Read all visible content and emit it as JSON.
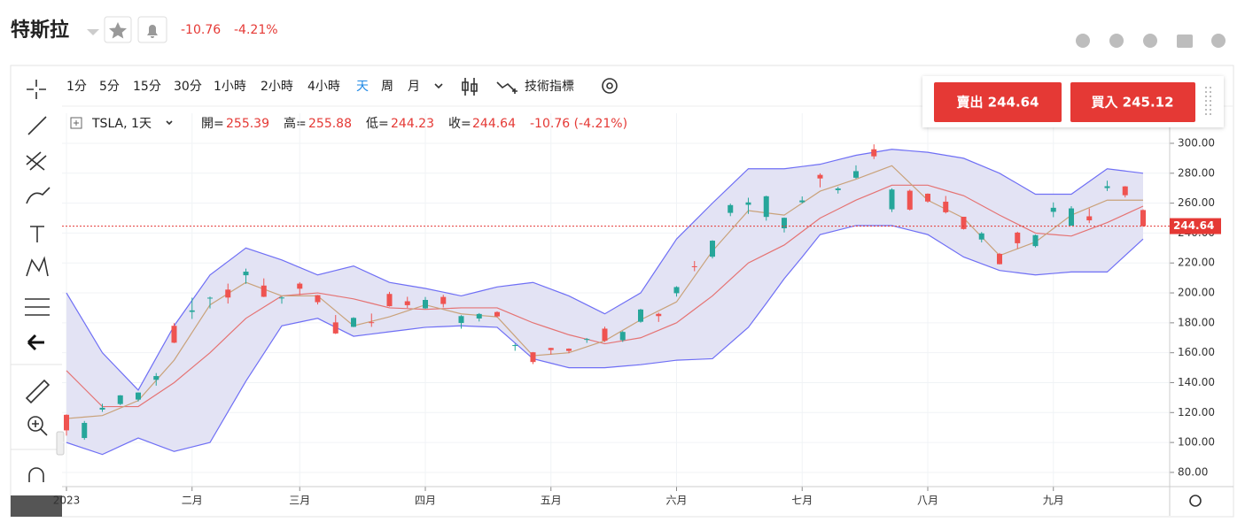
{
  "header": {
    "name": "特斯拉",
    "change": -10.76,
    "change_pct": "-4.21%"
  },
  "toolbar": {
    "intervals": [
      "1分",
      "5分",
      "15分",
      "30分",
      "1小時",
      "2小時",
      "4小時",
      "天",
      "周",
      "月"
    ],
    "indicators": "技術指標"
  },
  "legend": {
    "symbol": "TSLA, 1天",
    "open_label": "開=",
    "high_label": "高=",
    "low_label": "低=",
    "close_label": "收=",
    "change": "-10.76 (-4.21%)"
  },
  "trade": {
    "sell": "賣出 244.64",
    "buy": "買入 245.12"
  },
  "chart_data": {
    "type": "candlestick",
    "categories": [
      "2023",
      null,
      null,
      null,
      null,
      null,
      null,
      "二月",
      null,
      null,
      null,
      null,
      null,
      "三月",
      null,
      null,
      null,
      null,
      null,
      null,
      "四月",
      null,
      null,
      null,
      null,
      null,
      null,
      "五月",
      null,
      null,
      null,
      null,
      null,
      null,
      "六月",
      null,
      null,
      null,
      null,
      null,
      null,
      "七月",
      null,
      null,
      null,
      null,
      null,
      null,
      "八月",
      null,
      null,
      null,
      null,
      null,
      null,
      "九月",
      null,
      null,
      null,
      null,
      null
    ],
    "open": [
      118.5,
      103,
      122,
      125.7,
      128.7,
      141.9,
      178,
      187.3,
      196.4,
      202.2,
      211.8,
      204.9,
      196.3,
      206.2,
      198.5,
      180.3,
      177.3,
      180.4,
      199.3,
      194.4,
      189.7,
      197.3,
      179.9,
      182.9,
      187.2,
      164.8,
      160.3,
      163.2,
      162.7,
      168.9,
      176.1,
      168.4,
      180.7,
      186,
      199.8,
      217.8,
      224.2,
      253.5,
      258.9,
      250.8,
      243.2,
      260.6,
      278.9,
      268.7,
      277,
      296,
      255.9,
      268.3,
      266.3,
      260.97,
      250.9,
      235.7,
      226.1,
      240.3,
      231.3,
      254.2,
      245,
      251.2,
      270.1,
      271.2,
      255.39
    ],
    "high": [
      118.8,
      114.4,
      125.9,
      131.7,
      133.5,
      146.4,
      179.8,
      196.8,
      197.5,
      206.2,
      216.2,
      209.7,
      197.7,
      207.2,
      198.6,
      185.2,
      183.8,
      186.2,
      200.7,
      197.4,
      197.3,
      198.7,
      185.1,
      186.5,
      187.7,
      166,
      160.5,
      163.3,
      162.95,
      169.8,
      177.4,
      174.5,
      189.3,
      186.8,
      204.5,
      221.3,
      235.2,
      259.7,
      263.6,
      265,
      250.4,
      264.5,
      279.98,
      270.9,
      285.3,
      299.3,
      269.9,
      269.1,
      266.5,
      264.8,
      250.9,
      240.7,
      226.7,
      240.9,
      239,
      260.5,
      258,
      256.5,
      274.98,
      271.4,
      255.88
    ],
    "low": [
      104.6,
      101.8,
      120.5,
      125,
      127.4,
      138,
      166.5,
      182.6,
      189.6,
      192.9,
      206.1,
      197.2,
      192.8,
      198.5,
      192.3,
      172.5,
      177.1,
      177.3,
      190.9,
      189.9,
      189.4,
      190.3,
      176.1,
      180.9,
      183.6,
      161.3,
      152.4,
      158.8,
      159.7,
      166.6,
      167.2,
      167.2,
      180.1,
      180.6,
      197.5,
      214.5,
      223,
      251.3,
      252.8,
      248.3,
      240.4,
      259.8,
      270.6,
      266.4,
      276.3,
      289.5,
      254.1,
      255.1,
      260.3,
      253.1,
      242.3,
      233.8,
      219,
      229.6,
      230.4,
      250.6,
      244.9,
      246.6,
      268.1,
      263.8,
      244.23
    ],
    "close": [
      108.1,
      113.1,
      123.2,
      131.5,
      133.4,
      144.4,
      166.7,
      188.3,
      196.8,
      196.9,
      214.2,
      197.4,
      196.9,
      202.8,
      193.8,
      172.9,
      183.3,
      180.1,
      191.1,
      191.8,
      195.3,
      192.6,
      184.5,
      185.9,
      184.3,
      165.1,
      153.8,
      161.8,
      161.2,
      169.2,
      168,
      173.9,
      188.9,
      184.5,
      203.9,
      217.6,
      234.9,
      258.7,
      260.5,
      264.6,
      250.2,
      261.8,
      276.5,
      269.8,
      281.4,
      291.3,
      269.1,
      255.7,
      261.1,
      253.9,
      242.7,
      239.8,
      219.2,
      233.2,
      238.6,
      256.9,
      256.5,
      248.5,
      271.3,
      265.3,
      244.64
    ],
    "up_color": "#26a69a",
    "down_color": "#ef5350",
    "bands": {
      "color": "#6f6ff5",
      "fill": "#e3e3f4",
      "upper": [
        200,
        180,
        160,
        147.5,
        135,
        156.5,
        178,
        195,
        212,
        221,
        230,
        226,
        222,
        217,
        212,
        215,
        218,
        212.5,
        207,
        205,
        203,
        200.5,
        198,
        201,
        204,
        205.5,
        207,
        202.5,
        198,
        192,
        186,
        193,
        200,
        218,
        236,
        248,
        260,
        271.5,
        283,
        283,
        283,
        284.5,
        286,
        289,
        292,
        294,
        296,
        295,
        294,
        292,
        290,
        285,
        280,
        273,
        266,
        266,
        266,
        274.5,
        283,
        281.5,
        280
      ],
      "lower": [
        100,
        96,
        92,
        97.5,
        103,
        98.5,
        94,
        97,
        100,
        120.5,
        141,
        159.5,
        178,
        180.5,
        183,
        177,
        171,
        172.5,
        174,
        175.5,
        177,
        177.5,
        178,
        177.5,
        177,
        166.5,
        156,
        153,
        150,
        150,
        150,
        151,
        152,
        153.5,
        155,
        155.5,
        156,
        166.5,
        177,
        193,
        209.5,
        224,
        239,
        242,
        245,
        245,
        245,
        242,
        239,
        231.5,
        224,
        219.5,
        215,
        213.5,
        212,
        213,
        214,
        214,
        214,
        225,
        236
      ]
    },
    "lines": [
      {
        "color": "#e57373",
        "values": [
          148,
          136,
          124,
          124,
          124,
          132,
          140,
          150,
          160,
          171.5,
          183,
          190.5,
          198,
          199,
          200,
          198,
          196,
          193,
          190,
          189.5,
          189,
          189.5,
          190,
          190,
          190,
          185,
          180,
          176,
          172,
          169,
          166,
          168,
          170,
          175,
          180,
          189,
          198,
          209,
          220,
          226,
          232,
          241,
          250,
          256,
          262,
          267,
          272,
          272,
          272,
          268.5,
          265,
          258.5,
          252,
          246,
          240,
          239,
          238,
          242.5,
          247,
          252.5,
          258
        ]
      },
      {
        "color": "#c9a27a",
        "values": [
          116,
          117,
          118,
          123,
          128,
          141.5,
          155,
          173.5,
          192,
          199.5,
          207,
          202.5,
          198,
          198,
          198,
          188,
          178,
          181,
          184,
          188,
          192,
          189,
          186,
          185,
          184,
          171,
          158,
          159,
          160,
          164,
          168,
          175,
          182,
          188,
          194,
          211,
          228,
          241.5,
          255,
          253.5,
          252,
          260,
          268,
          272,
          276,
          280.5,
          285,
          273.5,
          262,
          256,
          250,
          237.5,
          225,
          229.5,
          234,
          243,
          252,
          257,
          262,
          262,
          262
        ]
      }
    ],
    "last_price_color": "#e53935",
    "ylim": [
      70.5,
      320.1
    ],
    "yticks": [
      {
        "value": 80,
        "label": "80.00"
      },
      {
        "value": 100,
        "label": "100.00"
      },
      {
        "value": 120,
        "label": "120.00"
      },
      {
        "value": 140,
        "label": "140.00"
      },
      {
        "value": 160,
        "label": "160.00"
      },
      {
        "value": 180,
        "label": "180.00"
      },
      {
        "value": 200,
        "label": "200.00"
      },
      {
        "value": 220,
        "label": "220.00"
      },
      {
        "value": 240,
        "label": "240.00"
      },
      {
        "value": 260,
        "label": "260.00"
      },
      {
        "value": 280,
        "label": "280.00"
      },
      {
        "value": 300,
        "label": "300.00"
      }
    ],
    "grid": true
  }
}
